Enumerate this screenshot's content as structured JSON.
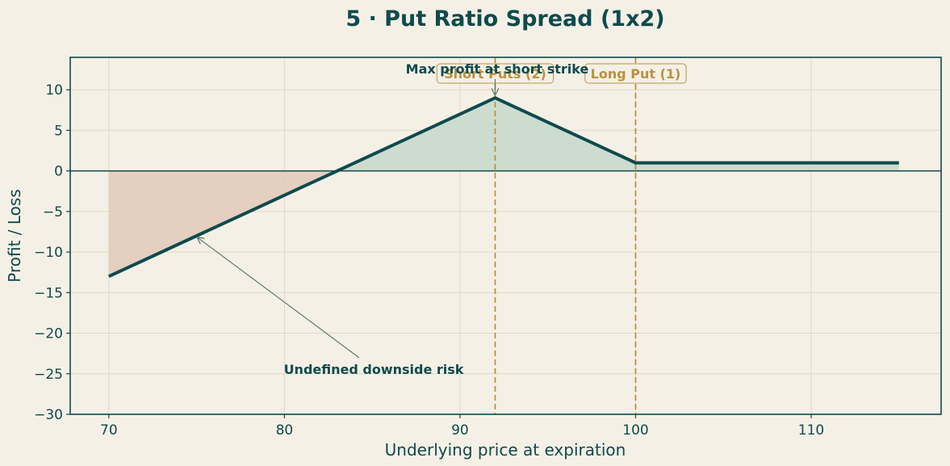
{
  "chart_data": {
    "type": "line",
    "title": "5 · Put Ratio Spread (1x2)",
    "xlabel": "Underlying price at expiration",
    "ylabel": "Profit / Loss",
    "xlim": [
      67.8,
      117.4
    ],
    "ylim": [
      -30,
      14
    ],
    "xticks": [
      70,
      80,
      90,
      100,
      110
    ],
    "yticks": [
      10,
      5,
      0,
      -5,
      -10,
      -15,
      -20,
      -25,
      -30
    ],
    "ytick_labels": [
      "10",
      "5",
      "0",
      "−5",
      "−10",
      "−15",
      "−20",
      "−25",
      "−30"
    ],
    "grid": true,
    "series": [
      {
        "x": [
          70,
          83,
          92,
          100,
          115
        ],
        "y": [
          -13,
          0,
          9,
          1,
          1
        ]
      }
    ],
    "strikes": [
      {
        "x": 92,
        "label": "Short Puts (2)"
      },
      {
        "x": 100,
        "label": "Long Put (1)"
      }
    ],
    "annotations": [
      {
        "text": "Max profit at short strike",
        "point": [
          92,
          9
        ]
      },
      {
        "text": "Undefined downside risk",
        "point": [
          75,
          -8
        ]
      }
    ],
    "colors": {
      "background": "#f5f0e6",
      "line": "#0e4a4d",
      "profit_fill": "#c8d9cc",
      "loss_fill": "#e2cbbb",
      "strike": "#b8923e",
      "grid": "#e0d9c6"
    }
  }
}
